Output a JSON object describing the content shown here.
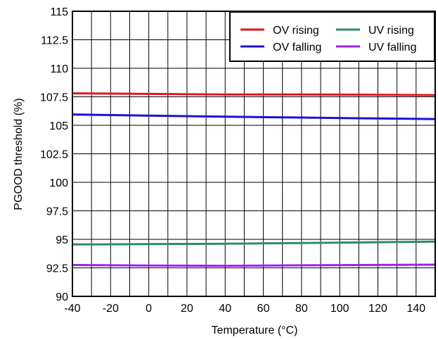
{
  "chart_data": {
    "type": "line",
    "title": "",
    "xlabel": "Temperature (°C)",
    "ylabel": "PGOOD threshold (%)",
    "xlim": [
      -40,
      150
    ],
    "ylim": [
      90,
      115
    ],
    "x_ticks": [
      -40,
      -20,
      0,
      20,
      40,
      60,
      80,
      100,
      120,
      140
    ],
    "x_tick_labels": [
      "-40",
      "-20",
      "0",
      "20",
      "40",
      "60",
      "80",
      "100",
      "120",
      "140"
    ],
    "x_minor_step": 10,
    "y_ticks": [
      90,
      92.5,
      95,
      97.5,
      100,
      102.5,
      105,
      107.5,
      110,
      112.5,
      115
    ],
    "y_tick_labels": [
      "90",
      "92.5",
      "95",
      "97.5",
      "100",
      "102.5",
      "105",
      "107.5",
      "110",
      "112.5",
      "115"
    ],
    "grid": true,
    "legend_position": "top-right",
    "series": [
      {
        "name": "OV rising",
        "color": "#e8141b",
        "x": [
          -40,
          0,
          40,
          80,
          120,
          150
        ],
        "values": [
          107.8,
          107.75,
          107.7,
          107.7,
          107.68,
          107.65
        ]
      },
      {
        "name": "UV rising",
        "color": "#2e8b6a",
        "x": [
          -40,
          0,
          40,
          80,
          120,
          150
        ],
        "values": [
          94.55,
          94.58,
          94.62,
          94.68,
          94.75,
          94.8
        ]
      },
      {
        "name": "OV falling",
        "color": "#1a10e0",
        "x": [
          -40,
          0,
          40,
          80,
          120,
          150
        ],
        "values": [
          105.95,
          105.85,
          105.75,
          105.68,
          105.6,
          105.55
        ]
      },
      {
        "name": "UV falling",
        "color": "#a020f0",
        "x": [
          -40,
          0,
          40,
          80,
          120,
          150
        ],
        "values": [
          92.75,
          92.7,
          92.68,
          92.72,
          92.75,
          92.78
        ]
      }
    ]
  }
}
